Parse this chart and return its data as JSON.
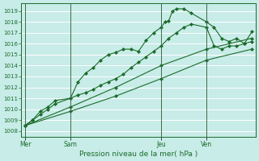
{
  "title": "",
  "xlabel": "Pression niveau de la mer( hPa )",
  "bg_color": "#c8ece8",
  "grid_color": "#ffffff",
  "line_color": "#1a6b2a",
  "ylim": [
    1007.5,
    1019.7
  ],
  "yticks": [
    1008,
    1009,
    1010,
    1011,
    1012,
    1013,
    1014,
    1015,
    1016,
    1017,
    1018,
    1019
  ],
  "xtick_labels": [
    "Mer",
    "Sam",
    "Jeu",
    "Ven"
  ],
  "xtick_positions": [
    0,
    24,
    72,
    96
  ],
  "vline_positions": [
    0,
    24,
    72,
    96
  ],
  "xlim": [
    -2,
    122
  ],
  "series": [
    {
      "x": [
        0,
        4,
        8,
        12,
        16,
        24,
        28,
        32,
        36,
        40,
        44,
        48,
        52,
        56,
        60,
        64,
        68,
        72,
        74,
        76,
        78,
        80,
        84,
        88,
        96,
        100,
        104,
        108,
        112,
        116,
        120
      ],
      "y": [
        1008.5,
        1009.0,
        1009.8,
        1010.2,
        1010.8,
        1011.0,
        1012.5,
        1013.3,
        1013.8,
        1014.5,
        1015.0,
        1015.2,
        1015.5,
        1015.5,
        1015.3,
        1016.3,
        1017.0,
        1017.5,
        1018.0,
        1018.1,
        1019.0,
        1019.2,
        1019.2,
        1018.8,
        1018.0,
        1017.5,
        1016.5,
        1016.2,
        1016.5,
        1016.0,
        1017.1
      ]
    },
    {
      "x": [
        0,
        4,
        8,
        12,
        16,
        24,
        28,
        32,
        36,
        40,
        44,
        48,
        52,
        56,
        60,
        64,
        68,
        72,
        76,
        80,
        84,
        88,
        96,
        100,
        104,
        108,
        112,
        116,
        120
      ],
      "y": [
        1008.5,
        1009.0,
        1009.5,
        1010.0,
        1010.5,
        1011.0,
        1011.3,
        1011.5,
        1011.8,
        1012.2,
        1012.5,
        1012.8,
        1013.2,
        1013.8,
        1014.3,
        1014.8,
        1015.3,
        1015.8,
        1016.5,
        1017.0,
        1017.5,
        1017.8,
        1017.5,
        1015.8,
        1015.5,
        1015.8,
        1015.8,
        1016.0,
        1016.2
      ]
    },
    {
      "x": [
        0,
        24,
        48,
        72,
        96,
        120
      ],
      "y": [
        1008.5,
        1010.2,
        1012.0,
        1014.0,
        1015.5,
        1016.5
      ]
    },
    {
      "x": [
        0,
        24,
        48,
        72,
        96,
        120
      ],
      "y": [
        1008.5,
        1009.8,
        1011.2,
        1012.8,
        1014.5,
        1015.5
      ]
    }
  ]
}
